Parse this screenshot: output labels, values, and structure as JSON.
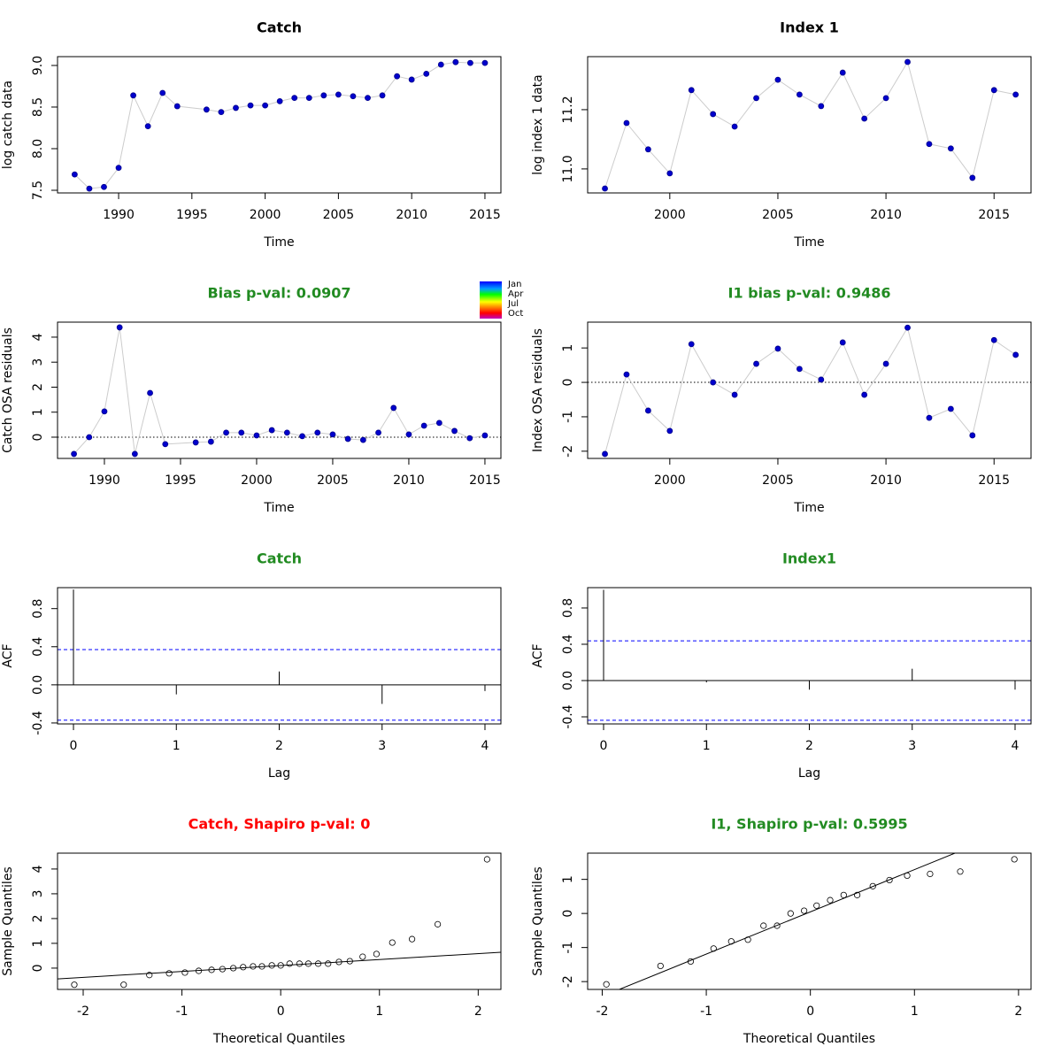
{
  "chart_data": [
    {
      "type": "line",
      "title": "Catch",
      "title_color": "#000000",
      "xlabel": "Time",
      "ylabel": "log catch data",
      "x": [
        1987,
        1988,
        1989,
        1990,
        1991,
        1992,
        1993,
        1994,
        1996,
        1997,
        1998,
        1999,
        2000,
        2001,
        2002,
        2003,
        2004,
        2005,
        2006,
        2007,
        2008,
        2009,
        2010,
        2011,
        2012,
        2013,
        2014,
        2015
      ],
      "values": [
        7.69,
        7.52,
        7.54,
        7.77,
        8.64,
        8.27,
        8.67,
        8.51,
        8.47,
        8.44,
        8.49,
        8.52,
        8.52,
        8.57,
        8.61,
        8.61,
        8.64,
        8.65,
        8.63,
        8.61,
        8.64,
        8.87,
        8.83,
        8.9,
        9.01,
        9.04,
        9.03,
        9.03
      ],
      "color": "#0000cd",
      "line_color": "#cccccc",
      "xlim": [
        1985.83,
        2016.09
      ],
      "ylim": [
        7.468,
        9.106
      ],
      "xticks": [
        1990,
        1995,
        2000,
        2005,
        2010,
        2015
      ],
      "yticks": [
        7.5,
        {
          "value": 8,
          "label": "8.0"
        },
        8.5,
        {
          "value": 9,
          "label": "9.0"
        }
      ]
    },
    {
      "type": "line",
      "title": "Index 1",
      "title_color": "#000000",
      "xlabel": "Time",
      "ylabel": "log index 1 data",
      "x": [
        1997,
        1998,
        1999,
        2000,
        2001,
        2002,
        2003,
        2004,
        2005,
        2006,
        2007,
        2008,
        2009,
        2010,
        2011,
        2012,
        2013,
        2014,
        2015,
        2016
      ],
      "values": [
        10.934,
        11.155,
        11.066,
        10.985,
        11.266,
        11.185,
        11.143,
        11.239,
        11.301,
        11.251,
        11.212,
        11.325,
        11.17,
        11.239,
        11.361,
        11.084,
        11.069,
        10.97,
        11.266,
        11.251
      ],
      "color": "#0000cd",
      "line_color": "#cccccc",
      "xlim": [
        1996.2,
        2016.71
      ],
      "ylim": [
        10.919,
        11.379
      ],
      "xticks": [
        2000,
        2005,
        2010,
        2015
      ],
      "yticks": [
        {
          "value": 11,
          "label": "11.0"
        },
        11.2
      ]
    },
    {
      "type": "line",
      "title": "Bias p-val: 0.0907",
      "title_color": "#228b22",
      "xlabel": "Time",
      "ylabel": "Catch OSA residuals",
      "x": [
        1988,
        1989,
        1990,
        1991,
        1992,
        1993,
        1994,
        1996,
        1997,
        1998,
        1999,
        2000,
        2001,
        2002,
        2003,
        2004,
        2005,
        2006,
        2007,
        2008,
        2009,
        2010,
        2011,
        2012,
        2013,
        2014,
        2015
      ],
      "values": [
        -0.67,
        0.0,
        1.03,
        4.39,
        -0.67,
        1.77,
        -0.28,
        -0.21,
        -0.18,
        0.18,
        0.18,
        0.07,
        0.28,
        0.18,
        0.04,
        0.18,
        0.11,
        -0.07,
        -0.11,
        0.18,
        1.17,
        0.11,
        0.46,
        0.57,
        0.25,
        -0.04,
        0.07
      ],
      "color": "#0000cd",
      "line_color": "#cccccc",
      "hline": 0,
      "colorbar_labels": [
        "Jan",
        "Apr",
        "Jul",
        "Oct"
      ],
      "xlim": [
        1986.92,
        2016.05
      ],
      "ylim": [
        -0.85,
        4.6
      ],
      "xticks": [
        1990,
        1995,
        2000,
        2005,
        2010,
        2015
      ],
      "yticks": [
        0,
        1,
        2,
        3,
        4
      ]
    },
    {
      "type": "line",
      "title": "I1 bias p-val: 0.9486",
      "title_color": "#228b22",
      "xlabel": "Time",
      "ylabel": "Index OSA residuals",
      "x": [
        1997,
        1998,
        1999,
        2000,
        2001,
        2002,
        2003,
        2004,
        2005,
        2006,
        2007,
        2008,
        2009,
        2010,
        2011,
        2012,
        2013,
        2014,
        2015,
        2016
      ],
      "values": [
        -2.08,
        0.23,
        -0.82,
        -1.41,
        1.11,
        0.0,
        -0.36,
        0.54,
        0.98,
        0.39,
        0.08,
        1.16,
        -0.36,
        0.54,
        1.59,
        -1.03,
        -0.77,
        -1.54,
        1.23,
        0.8
      ],
      "color": "#0000cd",
      "line_color": "#cccccc",
      "hline": 0,
      "xlim": [
        1996.2,
        2016.71
      ],
      "ylim": [
        -2.21,
        1.75
      ],
      "xticks": [
        2000,
        2005,
        2010,
        2015
      ],
      "yticks": [
        -2,
        -1,
        0,
        1
      ]
    },
    {
      "type": "acf",
      "title": "Catch",
      "title_color": "#228b22",
      "xlabel": "Lag",
      "ylabel": "ACF",
      "x": [
        0,
        1,
        2,
        3,
        4
      ],
      "values": [
        1.0,
        -0.1,
        0.14,
        -0.2,
        -0.065
      ],
      "color": "#000000",
      "ci": 0.37,
      "ci_color": "#0000ff",
      "xlim": [
        -0.155,
        4.155
      ],
      "ylim": [
        -0.41,
        1.02
      ],
      "xticks": [
        0,
        1,
        2,
        3,
        4
      ],
      "yticks": [
        -0.4,
        {
          "value": 0,
          "label": "0.0"
        },
        0.4,
        0.8
      ]
    },
    {
      "type": "acf",
      "title": "Index1",
      "title_color": "#228b22",
      "xlabel": "Lag",
      "ylabel": "ACF",
      "x": [
        0,
        1,
        2,
        3,
        4
      ],
      "values": [
        1.0,
        -0.02,
        -0.1,
        0.13,
        -0.1
      ],
      "color": "#000000",
      "ci": 0.438,
      "ci_color": "#0000ff",
      "xlim": [
        -0.155,
        4.155
      ],
      "ylim": [
        -0.478,
        1.024
      ],
      "xticks": [
        0,
        1,
        2,
        3,
        4
      ],
      "yticks": [
        -0.4,
        {
          "value": 0,
          "label": "0.0"
        },
        0.4,
        0.8
      ]
    },
    {
      "type": "qq",
      "title": "Catch, Shapiro p-val: 0",
      "title_color": "#ff0000",
      "xlabel": "Theoretical Quantiles",
      "ylabel": "Sample Quantiles",
      "x": [
        -2.09,
        -1.59,
        -1.33,
        -1.13,
        -0.97,
        -0.83,
        -0.7,
        -0.59,
        -0.48,
        -0.38,
        -0.28,
        -0.19,
        -0.09,
        0,
        0.09,
        0.19,
        0.28,
        0.38,
        0.48,
        0.59,
        0.7,
        0.83,
        0.97,
        1.13,
        1.33,
        1.59,
        2.09
      ],
      "values": [
        -0.67,
        -0.67,
        -0.28,
        -0.21,
        -0.18,
        -0.11,
        -0.07,
        -0.04,
        0.0,
        0.04,
        0.07,
        0.07,
        0.11,
        0.11,
        0.18,
        0.18,
        0.18,
        0.18,
        0.18,
        0.25,
        0.28,
        0.46,
        0.57,
        1.03,
        1.17,
        1.77,
        4.39
      ],
      "color": "#000000",
      "qqline": {
        "intercept": 0.105,
        "slope": 0.24
      },
      "xlim": [
        -2.26,
        2.23
      ],
      "ylim": [
        -0.86,
        4.64
      ],
      "xticks": [
        -2,
        -1,
        0,
        1,
        2
      ],
      "yticks": [
        0,
        1,
        2,
        3,
        4
      ]
    },
    {
      "type": "qq",
      "title": "I1, Shapiro p-val: 0.5995",
      "title_color": "#228b22",
      "xlabel": "Theoretical Quantiles",
      "ylabel": "Sample Quantiles",
      "x": [
        -1.96,
        -1.44,
        -1.15,
        -0.93,
        -0.76,
        -0.6,
        -0.45,
        -0.32,
        -0.19,
        -0.06,
        0.06,
        0.19,
        0.32,
        0.45,
        0.6,
        0.76,
        0.93,
        1.15,
        1.44,
        1.96
      ],
      "values": [
        -2.08,
        -1.54,
        -1.41,
        -1.03,
        -0.82,
        -0.77,
        -0.36,
        -0.36,
        0.0,
        0.08,
        0.23,
        0.39,
        0.54,
        0.54,
        0.8,
        0.98,
        1.11,
        1.16,
        1.23,
        1.59
      ],
      "color": "#000000",
      "qqline": {
        "intercept": 0.047,
        "slope": 1.24
      },
      "xlim": [
        -2.14,
        2.12
      ],
      "ylim": [
        -2.23,
        1.77
      ],
      "xticks": [
        -2,
        -1,
        0,
        1,
        2
      ],
      "yticks": [
        -2,
        -1,
        0,
        1
      ]
    }
  ]
}
